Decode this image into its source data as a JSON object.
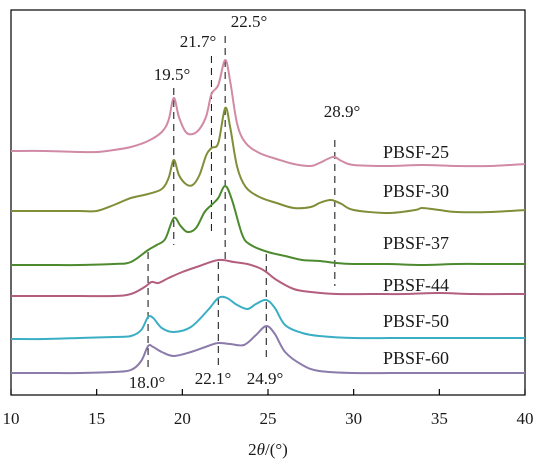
{
  "chart_data": {
    "type": "line",
    "xlabel_parts": [
      "2",
      "θ",
      "/(°)"
    ],
    "xlim": [
      10,
      40
    ],
    "xticks": [
      10,
      15,
      20,
      25,
      30,
      35,
      40
    ],
    "grid": false,
    "series": [
      {
        "name": "PBSF-25",
        "color": "#d08aa6",
        "points": [
          [
            10,
            151
          ],
          [
            12,
            151
          ],
          [
            14,
            152
          ],
          [
            15,
            152
          ],
          [
            16,
            150
          ],
          [
            17,
            147
          ],
          [
            18,
            141
          ],
          [
            18.8,
            132
          ],
          [
            19.2,
            120
          ],
          [
            19.5,
            98
          ],
          [
            19.8,
            117
          ],
          [
            20.2,
            132
          ],
          [
            20.6,
            134
          ],
          [
            21.0,
            129
          ],
          [
            21.4,
            116
          ],
          [
            21.7,
            94
          ],
          [
            22.1,
            85
          ],
          [
            22.5,
            60
          ],
          [
            22.8,
            82
          ],
          [
            23.2,
            124
          ],
          [
            23.7,
            143
          ],
          [
            24.5,
            153
          ],
          [
            25.5,
            159
          ],
          [
            26.5,
            164
          ],
          [
            27.5,
            166
          ],
          [
            28.0,
            163
          ],
          [
            28.6,
            158
          ],
          [
            28.9,
            157
          ],
          [
            29.3,
            161
          ],
          [
            30,
            165
          ],
          [
            32,
            166
          ],
          [
            34,
            165
          ],
          [
            36,
            166
          ],
          [
            38,
            166
          ],
          [
            40,
            164
          ]
        ]
      },
      {
        "name": "PBSF-30",
        "color": "#7e8f38",
        "points": [
          [
            10,
            211
          ],
          [
            12,
            211
          ],
          [
            14,
            211
          ],
          [
            15,
            211
          ],
          [
            16,
            205
          ],
          [
            17,
            198
          ],
          [
            18,
            194
          ],
          [
            18.8,
            189
          ],
          [
            19.2,
            178
          ],
          [
            19.5,
            160
          ],
          [
            19.8,
            175
          ],
          [
            20.2,
            184
          ],
          [
            20.6,
            185
          ],
          [
            21.0,
            175
          ],
          [
            21.4,
            155
          ],
          [
            21.7,
            148
          ],
          [
            22.1,
            143
          ],
          [
            22.5,
            108
          ],
          [
            22.8,
            128
          ],
          [
            23.2,
            167
          ],
          [
            23.7,
            187
          ],
          [
            24.5,
            197
          ],
          [
            25.5,
            203
          ],
          [
            26.5,
            208
          ],
          [
            27.5,
            207
          ],
          [
            28.0,
            203
          ],
          [
            28.6,
            200
          ],
          [
            28.9,
            201
          ],
          [
            29.3,
            204
          ],
          [
            30,
            210
          ],
          [
            32,
            213
          ],
          [
            33.6,
            210
          ],
          [
            34,
            208
          ],
          [
            35,
            210
          ],
          [
            36,
            212
          ],
          [
            38,
            212
          ],
          [
            40,
            210
          ]
        ]
      },
      {
        "name": "PBSF-37",
        "color": "#4d8a2f",
        "points": [
          [
            10,
            265
          ],
          [
            12,
            265
          ],
          [
            14,
            265
          ],
          [
            16,
            264
          ],
          [
            17,
            262
          ],
          [
            18,
            250
          ],
          [
            18.5,
            245
          ],
          [
            19.0,
            239
          ],
          [
            19.5,
            218
          ],
          [
            19.9,
            226
          ],
          [
            20.3,
            232
          ],
          [
            20.8,
            228
          ],
          [
            21.3,
            212
          ],
          [
            21.7,
            205
          ],
          [
            22.1,
            198
          ],
          [
            22.5,
            186
          ],
          [
            22.9,
            200
          ],
          [
            23.5,
            235
          ],
          [
            24.0,
            245
          ],
          [
            25.0,
            252
          ],
          [
            26,
            256
          ],
          [
            27,
            260
          ],
          [
            28,
            261
          ],
          [
            29,
            263
          ],
          [
            30,
            264
          ],
          [
            32,
            264
          ],
          [
            34,
            265
          ],
          [
            36,
            264
          ],
          [
            38,
            264
          ],
          [
            40,
            264
          ]
        ]
      },
      {
        "name": "PBSF-44",
        "color": "#b35e7e",
        "points": [
          [
            10,
            296
          ],
          [
            12,
            296
          ],
          [
            14,
            296
          ],
          [
            16,
            296
          ],
          [
            17,
            294
          ],
          [
            17.8,
            287
          ],
          [
            18.2,
            282
          ],
          [
            18.6,
            283
          ],
          [
            19.2,
            278
          ],
          [
            20,
            272
          ],
          [
            21,
            266
          ],
          [
            22.1,
            260
          ],
          [
            23.0,
            262
          ],
          [
            23.8,
            264
          ],
          [
            24.5,
            268
          ],
          [
            24.9,
            272
          ],
          [
            25.5,
            280
          ],
          [
            26.5,
            289
          ],
          [
            27.5,
            292
          ],
          [
            29,
            294
          ],
          [
            31,
            294
          ],
          [
            33,
            294
          ],
          [
            35,
            293
          ],
          [
            37,
            294
          ],
          [
            40,
            294
          ]
        ]
      },
      {
        "name": "PBSF-50",
        "color": "#3aaec4",
        "points": [
          [
            10,
            339
          ],
          [
            12,
            339
          ],
          [
            14,
            338
          ],
          [
            16,
            337
          ],
          [
            17,
            336
          ],
          [
            17.6,
            330
          ],
          [
            18.0,
            317
          ],
          [
            18.3,
            318
          ],
          [
            18.8,
            328
          ],
          [
            19.5,
            332
          ],
          [
            20.5,
            327
          ],
          [
            21.5,
            310
          ],
          [
            22.1,
            298
          ],
          [
            22.6,
            298
          ],
          [
            23.2,
            305
          ],
          [
            23.8,
            309
          ],
          [
            24.3,
            304
          ],
          [
            24.9,
            300
          ],
          [
            25.4,
            308
          ],
          [
            26,
            325
          ],
          [
            27,
            333
          ],
          [
            28,
            336
          ],
          [
            30,
            338
          ],
          [
            33,
            338
          ],
          [
            35,
            338
          ],
          [
            37,
            338
          ],
          [
            40,
            338
          ]
        ]
      },
      {
        "name": "PBSF-60",
        "color": "#8b7bab",
        "points": [
          [
            10,
            373
          ],
          [
            12,
            373
          ],
          [
            14,
            373
          ],
          [
            16,
            372
          ],
          [
            17,
            370
          ],
          [
            17.6,
            361
          ],
          [
            18.0,
            346
          ],
          [
            18.3,
            347
          ],
          [
            18.8,
            352
          ],
          [
            19.5,
            356
          ],
          [
            20.5,
            352
          ],
          [
            21.5,
            346
          ],
          [
            22.1,
            343
          ],
          [
            22.8,
            344
          ],
          [
            23.6,
            345
          ],
          [
            24.3,
            335
          ],
          [
            24.9,
            326
          ],
          [
            25.4,
            334
          ],
          [
            26,
            352
          ],
          [
            27,
            365
          ],
          [
            28,
            371
          ],
          [
            30,
            373
          ],
          [
            33,
            373
          ],
          [
            35,
            373
          ],
          [
            37,
            373
          ],
          [
            40,
            373
          ]
        ]
      }
    ],
    "peak_annotations": [
      {
        "label": "19.5°",
        "x": 19.5
      },
      {
        "label": "21.7°",
        "x": 21.7
      },
      {
        "label": "22.5°",
        "x": 22.5
      },
      {
        "label": "28.9°",
        "x": 28.9
      },
      {
        "label": "18.0°",
        "x": 18.0
      },
      {
        "label": "22.1°",
        "x": 22.1
      },
      {
        "label": "24.9°",
        "x": 24.9
      }
    ]
  }
}
